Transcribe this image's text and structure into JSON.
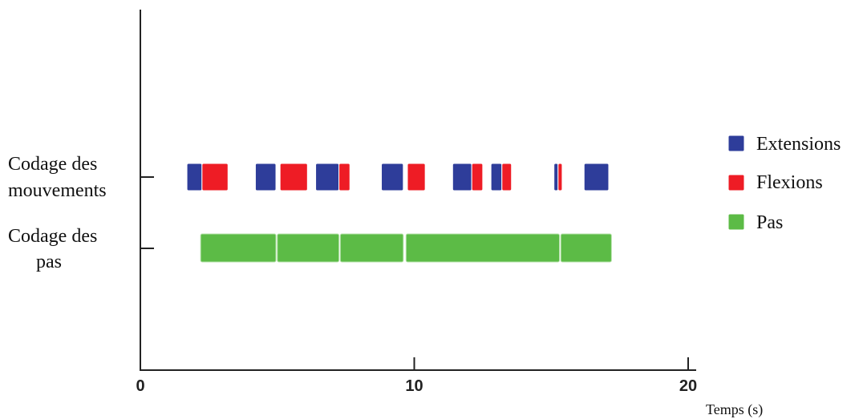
{
  "chart_data": {
    "type": "timeline",
    "xlabel": "Temps (s)",
    "xlim": [
      0,
      20
    ],
    "x_ticks": [
      0,
      10,
      20
    ],
    "tracks": [
      {
        "key": "movements",
        "label_lines": [
          "Codage des",
          "mouvements"
        ]
      },
      {
        "key": "steps",
        "label_lines": [
          "Codage des",
          "pas"
        ]
      }
    ],
    "legend": [
      {
        "key": "ext",
        "label": "Extensions",
        "color": "#2e3d9a"
      },
      {
        "key": "flex",
        "label": "Flexions",
        "color": "#ee1c25"
      },
      {
        "key": "pas",
        "label": "Pas",
        "color": "#5cbb46"
      }
    ],
    "segments": [
      {
        "track": "movements",
        "kind": "ext",
        "start": 1.7,
        "end": 2.25
      },
      {
        "track": "movements",
        "kind": "flex",
        "start": 2.25,
        "end": 3.2
      },
      {
        "track": "movements",
        "kind": "ext",
        "start": 4.2,
        "end": 4.95
      },
      {
        "track": "movements",
        "kind": "flex",
        "start": 5.1,
        "end": 6.1
      },
      {
        "track": "movements",
        "kind": "ext",
        "start": 6.4,
        "end": 7.25
      },
      {
        "track": "movements",
        "kind": "flex",
        "start": 7.25,
        "end": 7.65
      },
      {
        "track": "movements",
        "kind": "ext",
        "start": 8.8,
        "end": 9.6
      },
      {
        "track": "movements",
        "kind": "flex",
        "start": 9.75,
        "end": 10.4
      },
      {
        "track": "movements",
        "kind": "ext",
        "start": 11.4,
        "end": 12.1
      },
      {
        "track": "movements",
        "kind": "flex",
        "start": 12.1,
        "end": 12.5
      },
      {
        "track": "movements",
        "kind": "ext",
        "start": 12.8,
        "end": 13.2
      },
      {
        "track": "movements",
        "kind": "flex",
        "start": 13.2,
        "end": 13.55
      },
      {
        "track": "movements",
        "kind": "ext",
        "start": 15.1,
        "end": 15.25
      },
      {
        "track": "movements",
        "kind": "flex",
        "start": 15.25,
        "end": 15.4
      },
      {
        "track": "movements",
        "kind": "ext",
        "start": 16.2,
        "end": 17.1
      },
      {
        "track": "steps",
        "kind": "pas",
        "start": 2.2,
        "end": 4.95
      },
      {
        "track": "steps",
        "kind": "pas",
        "start": 5.0,
        "end": 7.25
      },
      {
        "track": "steps",
        "kind": "pas",
        "start": 7.3,
        "end": 9.6
      },
      {
        "track": "steps",
        "kind": "pas",
        "start": 9.7,
        "end": 15.3
      },
      {
        "track": "steps",
        "kind": "pas",
        "start": 15.35,
        "end": 17.2
      }
    ]
  }
}
